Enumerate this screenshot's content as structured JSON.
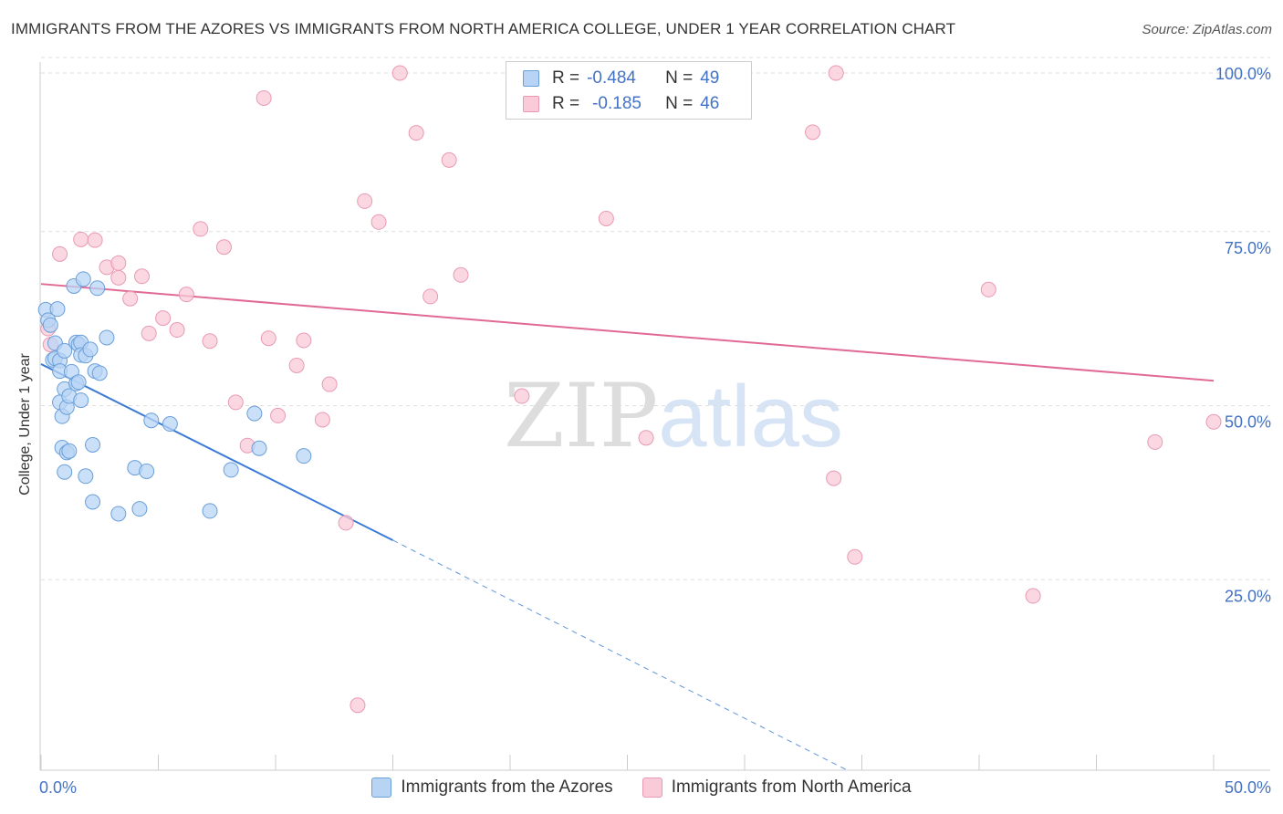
{
  "title": "IMMIGRANTS FROM THE AZORES VS IMMIGRANTS FROM NORTH AMERICA COLLEGE, UNDER 1 YEAR CORRELATION CHART",
  "source": "Source: ZipAtlas.com",
  "watermark": {
    "zip": "ZIP",
    "atlas": "atlas"
  },
  "legend": {
    "rows": [
      {
        "r_label": "R =",
        "r_value": "-0.484",
        "n_label": "N =",
        "n_value": "49"
      },
      {
        "r_label": "R =",
        "r_value": "-0.185",
        "n_label": "N =",
        "n_value": "46"
      }
    ]
  },
  "bottom_legend": {
    "azores": "Immigrants from the Azores",
    "north_america": "Immigrants from North America"
  },
  "colors": {
    "azores_fill": "#b8d4f5",
    "azores_stroke": "#6a9fd8",
    "azores_line": "#3a7bd5",
    "na_fill": "#f9cad8",
    "na_stroke": "#e89ab4",
    "na_line": "#e06a95",
    "tick": "#4472c4",
    "grid": "#dddddd"
  },
  "chart_data": {
    "type": "scatter",
    "title": "IMMIGRANTS FROM THE AZORES VS IMMIGRANTS FROM NORTH AMERICA COLLEGE, UNDER 1 YEAR CORRELATION CHART",
    "xlabel": "",
    "ylabel": "College, Under 1 year",
    "xlim": [
      0,
      50
    ],
    "ylim": [
      0,
      100
    ],
    "x_tick_labels": [
      {
        "value": 0,
        "label": "0.0%"
      },
      {
        "value": 50,
        "label": "50.0%"
      }
    ],
    "y_tick_labels": [
      {
        "value": 100,
        "label": "100.0%"
      },
      {
        "value": 75,
        "label": "75.0%"
      },
      {
        "value": 50,
        "label": "50.0%"
      },
      {
        "value": 25,
        "label": "25.0%"
      }
    ],
    "series": [
      {
        "name": "Immigrants from the Azores",
        "R": -0.484,
        "N": 49,
        "trend": {
          "x0": 0,
          "y0": 58.2,
          "x1": 15,
          "y1": 32.9,
          "dashed_to_x": 34.3,
          "dashed_to_y": 0
        },
        "points": [
          [
            0.2,
            66.0
          ],
          [
            0.3,
            64.5
          ],
          [
            0.4,
            63.8
          ],
          [
            0.5,
            58.8
          ],
          [
            0.6,
            61.2
          ],
          [
            0.6,
            59.0
          ],
          [
            0.7,
            66.1
          ],
          [
            0.8,
            58.7
          ],
          [
            0.8,
            57.2
          ],
          [
            0.8,
            52.7
          ],
          [
            0.9,
            46.2
          ],
          [
            0.9,
            50.7
          ],
          [
            1.0,
            42.7
          ],
          [
            1.0,
            54.6
          ],
          [
            1.0,
            60.1
          ],
          [
            1.1,
            52.0
          ],
          [
            1.1,
            45.5
          ],
          [
            1.2,
            53.6
          ],
          [
            1.2,
            45.7
          ],
          [
            1.3,
            57.1
          ],
          [
            1.4,
            69.4
          ],
          [
            1.5,
            61.3
          ],
          [
            1.5,
            55.4
          ],
          [
            1.6,
            61.0
          ],
          [
            1.6,
            55.6
          ],
          [
            1.7,
            53.0
          ],
          [
            1.7,
            61.3
          ],
          [
            1.7,
            59.5
          ],
          [
            1.8,
            70.4
          ],
          [
            1.9,
            59.4
          ],
          [
            1.9,
            42.1
          ],
          [
            2.1,
            60.3
          ],
          [
            2.2,
            46.6
          ],
          [
            2.2,
            38.4
          ],
          [
            2.3,
            57.2
          ],
          [
            2.4,
            69.1
          ],
          [
            2.5,
            56.9
          ],
          [
            2.8,
            62.0
          ],
          [
            3.3,
            36.7
          ],
          [
            4.0,
            43.3
          ],
          [
            4.2,
            37.4
          ],
          [
            4.5,
            42.8
          ],
          [
            4.7,
            50.1
          ],
          [
            5.5,
            49.6
          ],
          [
            7.2,
            37.1
          ],
          [
            8.1,
            43.0
          ],
          [
            9.1,
            51.1
          ],
          [
            9.3,
            46.1
          ],
          [
            11.2,
            45.0
          ]
        ]
      },
      {
        "name": "Immigrants from North America",
        "R": -0.185,
        "N": 46,
        "trend": {
          "x0": 0,
          "y0": 69.7,
          "x1": 50,
          "y1": 55.8
        },
        "points": [
          [
            0.3,
            63.3
          ],
          [
            0.4,
            61.0
          ],
          [
            0.8,
            74.0
          ],
          [
            1.7,
            76.1
          ],
          [
            2.3,
            76.0
          ],
          [
            2.8,
            72.1
          ],
          [
            3.3,
            72.7
          ],
          [
            3.3,
            70.6
          ],
          [
            3.8,
            67.6
          ],
          [
            4.3,
            70.8
          ],
          [
            4.6,
            62.6
          ],
          [
            5.2,
            64.8
          ],
          [
            5.8,
            63.1
          ],
          [
            6.2,
            68.2
          ],
          [
            6.8,
            77.6
          ],
          [
            7.2,
            61.5
          ],
          [
            7.8,
            75.0
          ],
          [
            8.3,
            52.7
          ],
          [
            8.8,
            46.5
          ],
          [
            9.5,
            96.4
          ],
          [
            9.7,
            61.9
          ],
          [
            10.1,
            50.8
          ],
          [
            10.9,
            58.0
          ],
          [
            11.2,
            61.6
          ],
          [
            12.0,
            50.2
          ],
          [
            12.3,
            55.3
          ],
          [
            13.0,
            35.4
          ],
          [
            13.5,
            9.2
          ],
          [
            13.8,
            81.6
          ],
          [
            14.4,
            78.6
          ],
          [
            15.3,
            100.0
          ],
          [
            16.0,
            91.4
          ],
          [
            16.6,
            67.9
          ],
          [
            17.4,
            87.5
          ],
          [
            17.9,
            71.0
          ],
          [
            20.5,
            53.6
          ],
          [
            24.1,
            79.1
          ],
          [
            25.8,
            47.6
          ],
          [
            32.9,
            91.5
          ],
          [
            33.8,
            41.8
          ],
          [
            33.9,
            100.0
          ],
          [
            34.7,
            30.5
          ],
          [
            40.4,
            68.9
          ],
          [
            42.3,
            24.9
          ],
          [
            47.5,
            47.0
          ],
          [
            50.0,
            49.9
          ]
        ]
      }
    ]
  }
}
